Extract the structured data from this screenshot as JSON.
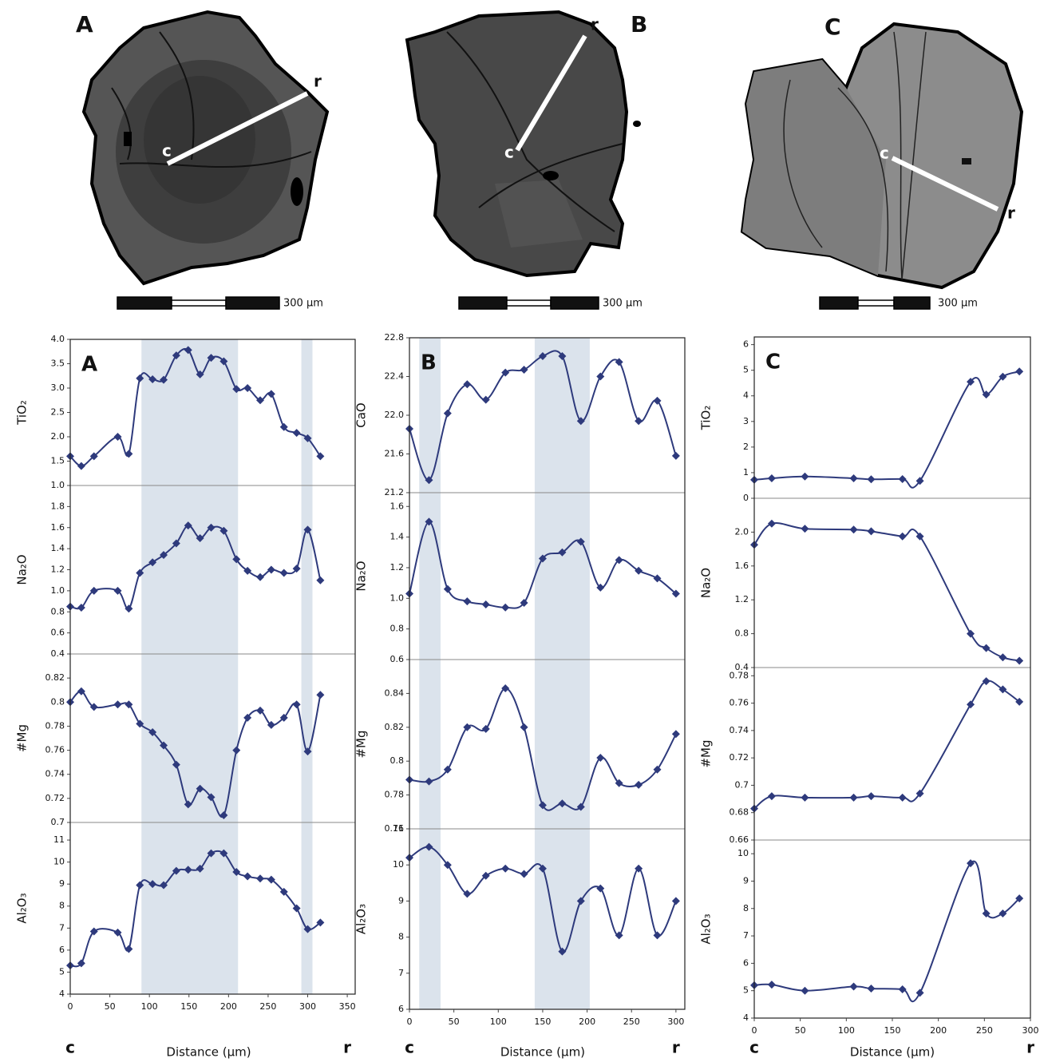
{
  "images": [
    {
      "label": "A",
      "center_label": "c",
      "rim_label": "r",
      "scale_label": "300 µm"
    },
    {
      "label": "B",
      "center_label": "c",
      "rim_label": "r",
      "scale_label": "300 µm"
    },
    {
      "label": "C",
      "center_label": "c",
      "rim_label": "r",
      "scale_label": "300 µm"
    }
  ],
  "chart_data": [
    {
      "type": "line",
      "label": "A",
      "xlabel": "Distance (µm)",
      "x_start_label": "c",
      "x_end_label": "r",
      "color": "#2e3a7c",
      "xlim": [
        0,
        360
      ],
      "xticks": [
        0,
        50,
        100,
        150,
        200,
        250,
        300,
        350
      ],
      "shaded_ranges": [
        [
          90,
          212
        ],
        [
          292,
          306
        ]
      ],
      "x": [
        0,
        14,
        30,
        60,
        74,
        88,
        104,
        118,
        134,
        149,
        164,
        178,
        194,
        210,
        224,
        240,
        254,
        270,
        286,
        300,
        316
      ],
      "panels": [
        {
          "ylabel": "TiO₂",
          "ylim": [
            1,
            4
          ],
          "yticks": [
            {
              "value": 1,
              "label": "1.0"
            },
            1.5,
            {
              "value": 2,
              "label": "2.0"
            },
            2.5,
            {
              "value": 3,
              "label": "3.0"
            },
            3.5,
            {
              "value": 4,
              "label": "4.0"
            }
          ],
          "values": [
            1.6,
            1.4,
            1.6,
            2.0,
            1.65,
            3.2,
            3.18,
            3.17,
            3.67,
            3.78,
            3.28,
            3.62,
            3.55,
            2.98,
            3.0,
            2.75,
            2.88,
            2.2,
            2.08,
            1.97,
            1.6
          ]
        },
        {
          "ylabel": "Na₂O",
          "ylim": [
            0.4,
            2.0
          ],
          "yticks": [
            0.4,
            0.6,
            0.8,
            {
              "value": 1,
              "label": "1.0"
            },
            1.2,
            1.4,
            1.6,
            1.8
          ],
          "values": [
            0.85,
            0.84,
            1.0,
            1.0,
            0.83,
            1.17,
            1.27,
            1.34,
            1.45,
            1.62,
            1.5,
            1.6,
            1.57,
            1.3,
            1.19,
            1.13,
            1.2,
            1.17,
            1.21,
            1.58,
            1.1
          ]
        },
        {
          "ylabel": "#Mg",
          "ylim": [
            0.7,
            0.84
          ],
          "yticks": [
            0.7,
            0.72,
            0.74,
            0.76,
            0.78,
            0.8,
            0.82
          ],
          "values": [
            0.8,
            0.809,
            0.796,
            0.798,
            0.798,
            0.782,
            0.775,
            0.764,
            0.748,
            0.715,
            0.728,
            0.721,
            0.706,
            0.76,
            0.787,
            0.793,
            0.781,
            0.787,
            0.798,
            0.759,
            0.806
          ]
        },
        {
          "ylabel": "Al₂O₃",
          "ylim": [
            4,
            11.8
          ],
          "yticks": [
            4,
            5,
            6,
            7,
            8,
            9,
            10,
            11
          ],
          "values": [
            5.3,
            5.4,
            6.85,
            6.8,
            6.05,
            8.95,
            9.0,
            8.95,
            9.6,
            9.65,
            9.7,
            10.4,
            10.4,
            9.55,
            9.35,
            9.25,
            9.2,
            8.65,
            7.9,
            6.95,
            7.25
          ]
        }
      ]
    },
    {
      "type": "line",
      "label": "B",
      "xlabel": "Distance (µm)",
      "x_start_label": "c",
      "x_end_label": "r",
      "color": "#2e3a7c",
      "xlim": [
        0,
        310
      ],
      "xticks": [
        0,
        50,
        100,
        150,
        200,
        250,
        300
      ],
      "shaded_ranges": [
        [
          11,
          35
        ],
        [
          141,
          203
        ]
      ],
      "x": [
        0,
        22,
        43,
        65,
        86,
        108,
        129,
        150,
        172,
        193,
        215,
        236,
        258,
        279,
        300
      ],
      "panels": [
        {
          "ylabel": "CaO",
          "ylim": [
            21.2,
            22.8
          ],
          "yticks": [
            21.2,
            21.6,
            {
              "value": 22,
              "label": "22.0"
            },
            22.4,
            22.8
          ],
          "values": [
            21.86,
            21.33,
            22.02,
            22.32,
            22.16,
            22.44,
            22.47,
            22.61,
            22.61,
            21.94,
            22.4,
            22.55,
            21.94,
            22.15,
            21.58
          ]
        },
        {
          "ylabel": "Na₂O",
          "ylim": [
            0.6,
            1.69
          ],
          "yticks": [
            0.6,
            0.8,
            {
              "value": 1,
              "label": "1.0"
            },
            1.2,
            1.4,
            1.6
          ],
          "values": [
            1.03,
            1.5,
            1.06,
            0.98,
            0.96,
            0.94,
            0.97,
            1.26,
            1.3,
            1.37,
            1.07,
            1.25,
            1.18,
            1.13,
            1.03
          ]
        },
        {
          "ylabel": "#Mg",
          "ylim": [
            0.76,
            0.86
          ],
          "yticks": [
            0.76,
            0.78,
            0.8,
            0.82,
            0.84
          ],
          "values": [
            0.789,
            0.788,
            0.795,
            0.82,
            0.819,
            0.843,
            0.82,
            0.774,
            0.775,
            0.773,
            0.802,
            0.787,
            0.786,
            0.795,
            0.816
          ]
        },
        {
          "ylabel": "Al₂O₃",
          "ylim": [
            6,
            11
          ],
          "yticks": [
            6,
            7,
            8,
            9,
            10,
            11
          ],
          "values": [
            10.2,
            10.5,
            10.0,
            9.2,
            9.7,
            9.9,
            9.75,
            9.9,
            7.6,
            9.0,
            9.35,
            8.05,
            9.9,
            8.05,
            9.0
          ]
        }
      ]
    },
    {
      "type": "line",
      "label": "C",
      "xlabel": "Distance (µm)",
      "x_start_label": "c",
      "x_end_label": "r",
      "color": "#2e3a7c",
      "xlim": [
        0,
        300
      ],
      "xticks": [
        0,
        50,
        100,
        150,
        200,
        250,
        300
      ],
      "x": [
        0,
        19,
        55,
        108,
        127,
        161,
        180,
        235,
        252,
        270,
        288
      ],
      "panels": [
        {
          "ylabel": "TiO₂",
          "ylim": [
            0,
            6.3
          ],
          "yticks": [
            0,
            1,
            2,
            3,
            4,
            5,
            6
          ],
          "values": [
            0.72,
            0.78,
            0.85,
            0.78,
            0.74,
            0.75,
            0.68,
            4.55,
            4.05,
            4.75,
            4.95
          ]
        },
        {
          "ylabel": "Na₂O",
          "ylim": [
            0.4,
            2.4
          ],
          "yticks": [
            0.4,
            0.8,
            1.2,
            1.6,
            {
              "value": 2,
              "label": "2.0"
            }
          ],
          "values": [
            1.85,
            2.1,
            2.04,
            2.03,
            2.01,
            1.95,
            1.95,
            0.8,
            0.63,
            0.52,
            0.48
          ]
        },
        {
          "ylabel": "#Mg",
          "ylim": [
            0.66,
            0.786
          ],
          "yticks": [
            0.66,
            0.68,
            0.7,
            0.72,
            0.74,
            0.76,
            0.78
          ],
          "values": [
            0.683,
            0.692,
            0.691,
            0.691,
            0.692,
            0.691,
            0.694,
            0.759,
            0.776,
            0.77,
            0.761
          ]
        },
        {
          "ylabel": "Al₂O₃",
          "ylim": [
            4,
            10.5
          ],
          "yticks": [
            4,
            5,
            6,
            7,
            8,
            9,
            10
          ],
          "values": [
            5.2,
            5.22,
            5.0,
            5.15,
            5.08,
            5.05,
            4.92,
            9.65,
            7.82,
            7.82,
            8.37
          ]
        }
      ]
    }
  ]
}
